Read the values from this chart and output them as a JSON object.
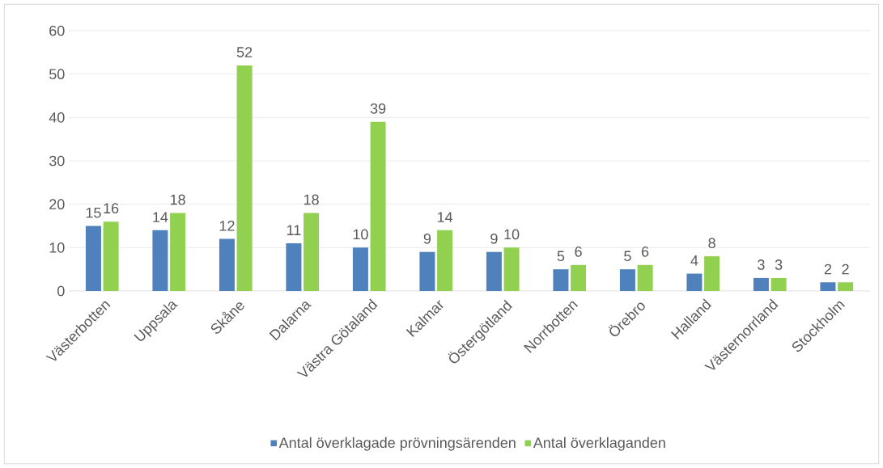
{
  "chart_data": {
    "type": "bar",
    "categories": [
      "Västerbotten",
      "Uppsala",
      "Skåne",
      "Dalarna",
      "Västra Götaland",
      "Kalmar",
      "Östergötland",
      "Norrbotten",
      "Örebro",
      "Halland",
      "Västernorrland",
      "Stockholm"
    ],
    "series": [
      {
        "name": "Antal överklagade prövningsärenden",
        "color": "#4f81bd",
        "values": [
          15,
          14,
          12,
          11,
          10,
          9,
          9,
          5,
          5,
          4,
          3,
          2
        ]
      },
      {
        "name": "Antal överklaganden",
        "color": "#92d050",
        "values": [
          16,
          18,
          52,
          18,
          39,
          14,
          10,
          6,
          6,
          8,
          3,
          2
        ]
      }
    ],
    "ylim": [
      0,
      60
    ],
    "yticks": [
      0,
      10,
      20,
      30,
      40,
      50,
      60
    ],
    "grid": "y",
    "legend": "bottom",
    "data_labels": true
  }
}
